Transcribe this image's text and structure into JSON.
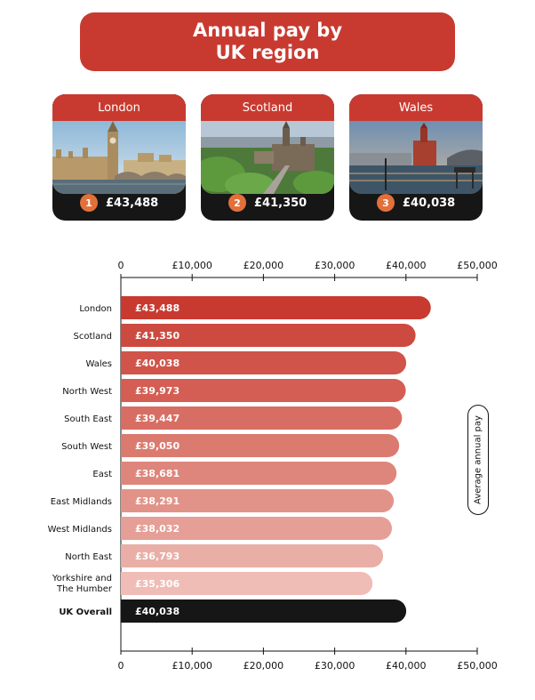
{
  "header": {
    "title": "Annual pay by UK region"
  },
  "top_cards": [
    {
      "region": "London",
      "rank": "1",
      "value": "£43,488"
    },
    {
      "region": "Scotland",
      "rank": "2",
      "value": "£41,350"
    },
    {
      "region": "Wales",
      "rank": "3",
      "value": "£40,038"
    }
  ],
  "colors": {
    "accent": "#c83a30",
    "rank_badge": "#e2703a",
    "overall_bar": "#161616",
    "bar_gradient": [
      "#c83a30",
      "#cd4a40",
      "#d0544a",
      "#d45e53",
      "#d86e63",
      "#db7a6f",
      "#de867c",
      "#e29389",
      "#e59f96",
      "#e9aea6",
      "#efbcb6"
    ]
  },
  "chart_data": {
    "type": "bar",
    "orientation": "horizontal",
    "title": "Annual pay by UK region",
    "ylabel": "Average annual pay",
    "categories": [
      "London",
      "Scotland",
      "Wales",
      "North West",
      "South East",
      "South West",
      "East",
      "East Midlands",
      "West Midlands",
      "North East",
      "Yorkshire and The Humber",
      "UK Overall"
    ],
    "category_lines": [
      [
        "London"
      ],
      [
        "Scotland"
      ],
      [
        "Wales"
      ],
      [
        "North West"
      ],
      [
        "South East"
      ],
      [
        "South West"
      ],
      [
        "East"
      ],
      [
        "East Midlands"
      ],
      [
        "West Midlands"
      ],
      [
        "North East"
      ],
      [
        "Yorkshire and",
        "The Humber"
      ],
      [
        "UK Overall"
      ]
    ],
    "values": [
      43488,
      41350,
      40038,
      39973,
      39447,
      39050,
      38681,
      38291,
      38032,
      36793,
      35306,
      40038
    ],
    "value_labels": [
      "£43,488",
      "£41,350",
      "£40,038",
      "£39,973",
      "£39,447",
      "£39,050",
      "£38,681",
      "£38,291",
      "£38,032",
      "£36,793",
      "£35,306",
      "£40,038"
    ],
    "xlim": [
      0,
      50000
    ],
    "ticks": [
      0,
      10000,
      20000,
      30000,
      40000,
      50000
    ],
    "tick_labels": [
      "0",
      "£10,000",
      "£20,000",
      "£30,000",
      "£40,000",
      "£50,000"
    ],
    "axis_position": "top-and-bottom",
    "grid": false
  }
}
